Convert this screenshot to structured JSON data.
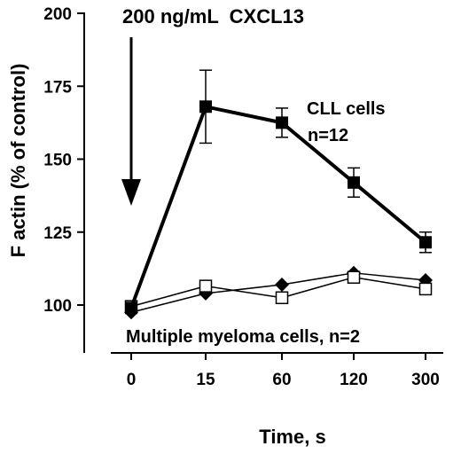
{
  "chart_data": {
    "type": "line",
    "title": "200 ng/mL  CXCL13",
    "xlabel": "Time, s",
    "ylabel": "F actin (% of control)",
    "categories": [
      "0",
      "15",
      "60",
      "120",
      "300"
    ],
    "yticks": [
      "100",
      "125",
      "150",
      "175",
      "200"
    ],
    "ylim": [
      90,
      200
    ],
    "grid": false,
    "series": [
      {
        "name": "CLL cells",
        "marker": "filled-square",
        "color": "#000000",
        "values": [
          99,
          168,
          162.5,
          142,
          121.5
        ],
        "error": [
          0,
          12.5,
          5,
          5,
          3.5
        ]
      },
      {
        "name": "",
        "marker": "filled-diamond",
        "color": "#000000",
        "values": [
          97.5,
          104,
          107,
          111,
          108.5
        ],
        "error": [
          0,
          0,
          0,
          0,
          0
        ]
      },
      {
        "name": "",
        "marker": "open-square",
        "color": "#000000",
        "values": [
          99.5,
          106.5,
          102.5,
          109.5,
          105.5
        ],
        "error": [
          0,
          0,
          0,
          0,
          0
        ]
      }
    ],
    "annotations": {
      "cll_line1": "CLL cells",
      "cll_line2": "n=12",
      "myeloma": "Multiple myeloma cells, n=2"
    }
  }
}
